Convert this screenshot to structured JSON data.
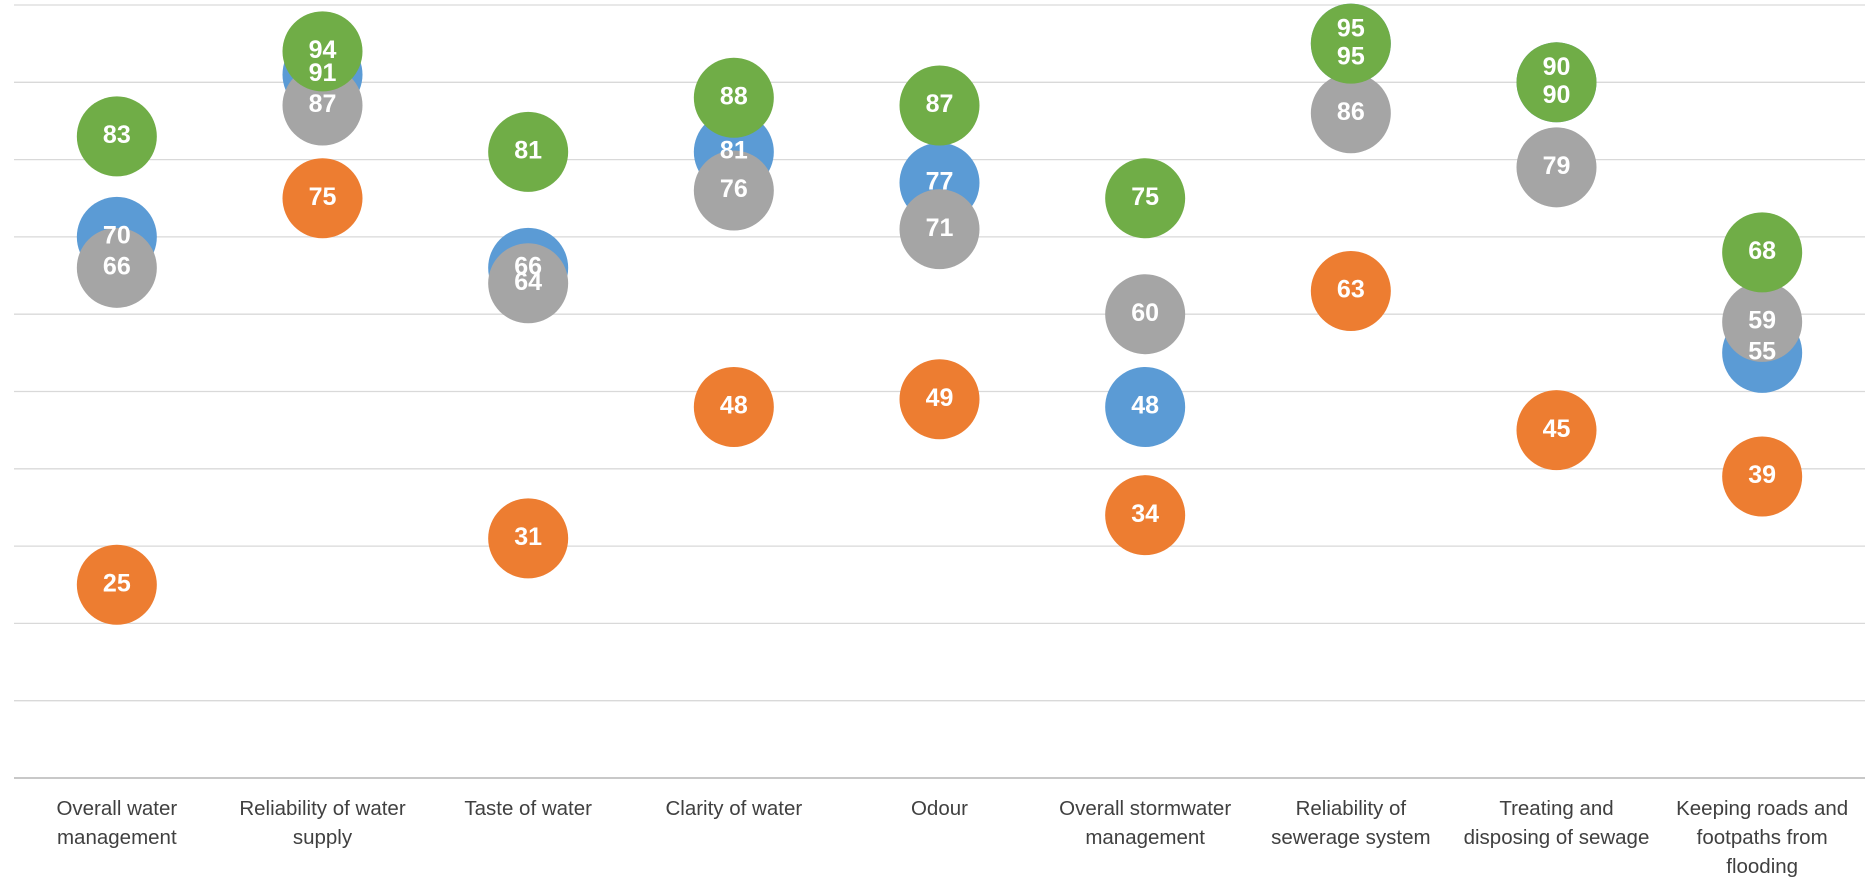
{
  "chart_data": {
    "type": "dot",
    "categories": [
      "Overall water management",
      "Reliability of water supply",
      "Taste of water",
      "Clarity of water",
      "Odour",
      "Overall stormwater management",
      "Reliability of sewerage system",
      "Treating and disposing of sewage",
      "Keeping roads and footpaths from flooding"
    ],
    "series": [
      {
        "color": "#5b9bd5",
        "values": [
          70,
          91,
          66,
          81,
          77,
          48,
          95,
          90,
          55
        ]
      },
      {
        "color": "#ed7d31",
        "values": [
          25,
          75,
          31,
          48,
          49,
          34,
          63,
          45,
          39
        ]
      },
      {
        "color": "#a5a5a5",
        "values": [
          66,
          87,
          64,
          76,
          71,
          60,
          86,
          79,
          59
        ]
      },
      {
        "color": "#70ad47",
        "values": [
          83,
          94,
          81,
          88,
          87,
          75,
          95,
          90,
          68
        ]
      }
    ],
    "ylim": [
      0,
      100
    ],
    "yticks": [
      0,
      10,
      20,
      30,
      40,
      50,
      60,
      70,
      80,
      90,
      100
    ],
    "grid": true
  }
}
